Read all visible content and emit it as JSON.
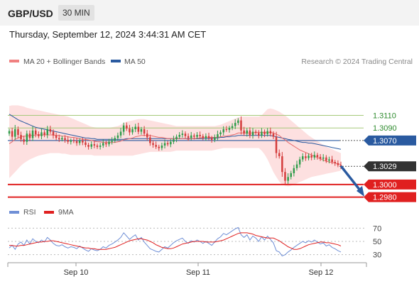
{
  "header": {
    "symbol": "GBP/USD",
    "timeframe": "30 MIN"
  },
  "timestamp": "Thursday, September 12, 2024 3:44:31 AM CET",
  "legend": {
    "items": [
      {
        "label": "MA 20 + Bollinger Bands",
        "color": "#f08080"
      },
      {
        "label": "MA 50",
        "color": "#2a5aa0"
      }
    ],
    "copyright": "Research © 2024 Trading Central"
  },
  "rsi_legend": {
    "items": [
      {
        "label": "RSI",
        "color": "#6f8fd6"
      },
      {
        "label": "9MA",
        "color": "#e02020"
      }
    ]
  },
  "colors": {
    "up_candle": "#2e9c4a",
    "down_candle": "#d43c3c",
    "bollinger_fill": "#fde0e0",
    "ma20": "#e86b6b",
    "ma50": "#2a5aa0",
    "resistance_line": "#a6c97a",
    "support_line": "#e02020",
    "current_price_badge": "#333333",
    "arrow": "#2a5aa0",
    "rsi_line": "#6f8fd6",
    "rsi_ma": "#e02020"
  },
  "chart_data": [
    {
      "type": "candlestick",
      "x_tick_labels": [
        "Sep 10",
        "Sep 11",
        "Sep 12"
      ],
      "ylim": [
        1.2975,
        1.3175
      ],
      "levels": [
        {
          "value": 1.311,
          "label": "1.3110",
          "kind": "resistance"
        },
        {
          "value": 1.309,
          "label": "1.3090",
          "kind": "resistance"
        },
        {
          "value": 1.307,
          "label": "1.3070",
          "kind": "ma50"
        },
        {
          "value": 1.3029,
          "label": "1.3029",
          "kind": "current"
        },
        {
          "value": 1.3,
          "label": "1.3000",
          "kind": "support"
        },
        {
          "value": 1.298,
          "label": "1.2980",
          "kind": "support"
        }
      ],
      "forecast_arrow": {
        "from": 1.3028,
        "to": 1.2983
      },
      "closes": [
        1.3085,
        1.3076,
        1.3088,
        1.3079,
        1.3072,
        1.3068,
        1.3081,
        1.3074,
        1.3086,
        1.308,
        1.3077,
        1.3083,
        1.3079,
        1.3088,
        1.3084,
        1.3078,
        1.3074,
        1.3072,
        1.3074,
        1.3071,
        1.3068,
        1.307,
        1.3069,
        1.3066,
        1.307,
        1.3067,
        1.3063,
        1.306,
        1.3064,
        1.3062,
        1.306,
        1.3062,
        1.3066,
        1.3064,
        1.3068,
        1.307,
        1.3074,
        1.3078,
        1.3084,
        1.3094,
        1.3089,
        1.3083,
        1.3088,
        1.3092,
        1.3084,
        1.3088,
        1.3081,
        1.3075,
        1.3066,
        1.3063,
        1.306,
        1.3058,
        1.3062,
        1.3066,
        1.3064,
        1.3068,
        1.3072,
        1.3076,
        1.3079,
        1.3081,
        1.3077,
        1.3074,
        1.3078,
        1.3076,
        1.3079,
        1.3077,
        1.3074,
        1.3077,
        1.3074,
        1.3071,
        1.3075,
        1.308,
        1.3083,
        1.3088,
        1.3087,
        1.309,
        1.3093,
        1.3098,
        1.3102,
        1.3086,
        1.3081,
        1.3086,
        1.3078,
        1.3084,
        1.3082,
        1.3078,
        1.3084,
        1.308,
        1.3085,
        1.3081,
        1.3076,
        1.305,
        1.3045,
        1.302,
        1.3006,
        1.3012,
        1.3018,
        1.3026,
        1.3032,
        1.304,
        1.3045,
        1.3042,
        1.3046,
        1.3043,
        1.3047,
        1.3044,
        1.3041,
        1.3043,
        1.3038,
        1.304,
        1.3036,
        1.3034,
        1.3031,
        1.3029
      ],
      "ma20": [
        1.3065,
        1.3068,
        1.3072,
        1.3074,
        1.3076,
        1.3077,
        1.3077,
        1.3078,
        1.3078,
        1.3079,
        1.3079,
        1.3079,
        1.3079,
        1.3079,
        1.3079,
        1.3079,
        1.3078,
        1.3078,
        1.3077,
        1.3077,
        1.3076,
        1.3075,
        1.3075,
        1.3074,
        1.3073,
        1.3072,
        1.3072,
        1.3071,
        1.307,
        1.3069,
        1.3068,
        1.3068,
        1.3067,
        1.3067,
        1.3067,
        1.3067,
        1.3067,
        1.3068,
        1.3069,
        1.3071,
        1.3072,
        1.3073,
        1.3074,
        1.3076,
        1.3077,
        1.3078,
        1.3078,
        1.3078,
        1.3078,
        1.3077,
        1.3076,
        1.3075,
        1.3075,
        1.3074,
        1.3073,
        1.3073,
        1.3073,
        1.3073,
        1.3073,
        1.3073,
        1.3073,
        1.3072,
        1.3073,
        1.3073,
        1.3074,
        1.3074,
        1.3075,
        1.3075,
        1.3075,
        1.3075,
        1.3075,
        1.3075,
        1.3076,
        1.3077,
        1.3077,
        1.3078,
        1.3079,
        1.308,
        1.3082,
        1.3082,
        1.3082,
        1.3082,
        1.3082,
        1.3082,
        1.3083,
        1.3083,
        1.3083,
        1.3083,
        1.3083,
        1.3083,
        1.3082,
        1.308,
        1.3078,
        1.3074,
        1.3071,
        1.3067,
        1.3064,
        1.3061,
        1.3058,
        1.3055,
        1.3053,
        1.3051,
        1.3049,
        1.3047,
        1.3045,
        1.3043,
        1.3041,
        1.3039,
        1.3037,
        1.3036,
        1.3035,
        1.3034,
        1.3033,
        1.3032
      ],
      "bb_upper": [
        1.3125,
        1.3126,
        1.3126,
        1.3126,
        1.3125,
        1.3124,
        1.3122,
        1.3121,
        1.312,
        1.3119,
        1.3118,
        1.3117,
        1.3116,
        1.3115,
        1.3114,
        1.3113,
        1.3112,
        1.3111,
        1.311,
        1.3109,
        1.3108,
        1.3106,
        1.3104,
        1.3102,
        1.31,
        1.3098,
        1.3096,
        1.3094,
        1.3092,
        1.3091,
        1.309,
        1.309,
        1.309,
        1.309,
        1.309,
        1.3091,
        1.3092,
        1.3093,
        1.3095,
        1.3098,
        1.31,
        1.3101,
        1.3102,
        1.3103,
        1.3104,
        1.3104,
        1.3104,
        1.3103,
        1.3102,
        1.3101,
        1.31,
        1.3099,
        1.3098,
        1.3097,
        1.3096,
        1.3095,
        1.3094,
        1.3093,
        1.3093,
        1.3093,
        1.3093,
        1.3093,
        1.3093,
        1.3093,
        1.3093,
        1.3093,
        1.3093,
        1.3093,
        1.3093,
        1.3093,
        1.3093,
        1.3094,
        1.3095,
        1.3097,
        1.3099,
        1.3101,
        1.3103,
        1.3105,
        1.3107,
        1.3108,
        1.3108,
        1.3108,
        1.3108,
        1.3108,
        1.3108,
        1.3108,
        1.311,
        1.3115,
        1.312,
        1.3121,
        1.312,
        1.3118,
        1.3116,
        1.3113,
        1.311,
        1.3106,
        1.3102,
        1.3098,
        1.3094,
        1.309,
        1.3086,
        1.3082,
        1.3078,
        1.3075,
        1.3072,
        1.3069,
        1.3066,
        1.3063,
        1.306,
        1.3058,
        1.3056,
        1.3054,
        1.3052,
        1.305
      ],
      "bb_lower": [
        1.301,
        1.3015,
        1.302,
        1.3025,
        1.303,
        1.3034,
        1.3037,
        1.304,
        1.3042,
        1.3044,
        1.3046,
        1.3047,
        1.3048,
        1.3049,
        1.305,
        1.305,
        1.305,
        1.305,
        1.3049,
        1.3049,
        1.3048,
        1.3047,
        1.3047,
        1.3047,
        1.3047,
        1.3047,
        1.3047,
        1.3047,
        1.3047,
        1.3046,
        1.3046,
        1.3046,
        1.3046,
        1.3046,
        1.3046,
        1.3046,
        1.3046,
        1.3046,
        1.3046,
        1.3046,
        1.3046,
        1.3046,
        1.3046,
        1.3047,
        1.3048,
        1.3049,
        1.305,
        1.3051,
        1.3052,
        1.3052,
        1.3052,
        1.3052,
        1.3052,
        1.3052,
        1.3052,
        1.3052,
        1.3053,
        1.3054,
        1.3054,
        1.3054,
        1.3054,
        1.3054,
        1.3054,
        1.3054,
        1.3054,
        1.3054,
        1.3054,
        1.3054,
        1.3054,
        1.3054,
        1.3055,
        1.3056,
        1.3057,
        1.3058,
        1.3058,
        1.3058,
        1.3058,
        1.3058,
        1.3058,
        1.3058,
        1.3058,
        1.3058,
        1.3058,
        1.3058,
        1.3058,
        1.3058,
        1.3054,
        1.3048,
        1.304,
        1.303,
        1.302,
        1.3012,
        1.3005,
        1.3,
        1.2998,
        1.2997,
        1.2998,
        1.3,
        1.3002,
        1.3004,
        1.3006,
        1.3008,
        1.301,
        1.3012,
        1.3013,
        1.3014,
        1.3015,
        1.3016,
        1.3017,
        1.3018,
        1.3019,
        1.302,
        1.3021,
        1.3022
      ],
      "ma50": [
        1.3112,
        1.3109,
        1.3106,
        1.3103,
        1.3101,
        1.3099,
        1.3097,
        1.3095,
        1.3093,
        1.3091,
        1.309,
        1.3089,
        1.3088,
        1.3087,
        1.3086,
        1.3085,
        1.3084,
        1.3083,
        1.3082,
        1.3081,
        1.308,
        1.3079,
        1.3078,
        1.3077,
        1.3076,
        1.3075,
        1.3074,
        1.3074,
        1.3073,
        1.3073,
        1.3072,
        1.3072,
        1.3072,
        1.3072,
        1.3072,
        1.3072,
        1.3072,
        1.3072,
        1.3072,
        1.3072,
        1.3073,
        1.3073,
        1.3073,
        1.3073,
        1.3073,
        1.3073,
        1.3073,
        1.3073,
        1.3073,
        1.3073,
        1.3073,
        1.3073,
        1.3073,
        1.3073,
        1.3073,
        1.3073,
        1.3073,
        1.3073,
        1.3073,
        1.3073,
        1.3073,
        1.3073,
        1.3073,
        1.3073,
        1.3073,
        1.3073,
        1.3073,
        1.3073,
        1.3073,
        1.3074,
        1.3074,
        1.3074,
        1.3075,
        1.3075,
        1.3076,
        1.3076,
        1.3077,
        1.3077,
        1.3078,
        1.3078,
        1.3078,
        1.3078,
        1.3078,
        1.3078,
        1.3078,
        1.3078,
        1.3078,
        1.3078,
        1.3078,
        1.3078,
        1.3077,
        1.3076,
        1.3075,
        1.3074,
        1.3073,
        1.3072,
        1.3071,
        1.307,
        1.3069,
        1.3068,
        1.3067,
        1.3067,
        1.3066,
        1.3066,
        1.3065,
        1.3064,
        1.3063,
        1.3062,
        1.3061,
        1.306,
        1.3059,
        1.3058,
        1.3057,
        1.3056
      ]
    },
    {
      "type": "line",
      "series": [
        {
          "name": "RSI"
        },
        {
          "name": "9MA"
        }
      ],
      "ylim": [
        20,
        80
      ],
      "y_tick_labels": [
        "70",
        "50",
        "30"
      ],
      "y_ticks": [
        70,
        50,
        30
      ],
      "rsi": [
        40,
        44,
        38,
        46,
        49,
        44,
        52,
        46,
        54,
        50,
        48,
        52,
        49,
        56,
        52,
        47,
        44,
        43,
        45,
        42,
        40,
        42,
        41,
        39,
        43,
        40,
        37,
        35,
        39,
        37,
        36,
        38,
        42,
        40,
        44,
        46,
        49,
        52,
        56,
        63,
        58,
        53,
        57,
        60,
        52,
        56,
        49,
        44,
        39,
        37,
        35,
        34,
        38,
        42,
        40,
        44,
        48,
        51,
        53,
        55,
        50,
        47,
        51,
        49,
        52,
        50,
        47,
        50,
        47,
        44,
        49,
        54,
        57,
        62,
        60,
        63,
        66,
        69,
        71,
        60,
        56,
        60,
        52,
        58,
        55,
        50,
        57,
        52,
        58,
        53,
        48,
        36,
        34,
        28,
        30,
        34,
        37,
        41,
        44,
        47,
        50,
        48,
        51,
        49,
        52,
        49,
        46,
        48,
        43,
        45,
        41,
        39,
        36,
        34
      ],
      "rsi_ma": [
        44,
        44,
        43,
        43,
        44,
        44,
        45,
        46,
        47,
        48,
        49,
        49,
        50,
        50,
        51,
        51,
        50,
        49,
        48,
        47,
        46,
        45,
        44,
        43,
        42,
        41,
        40,
        40,
        39,
        39,
        38,
        38,
        38,
        38,
        39,
        40,
        41,
        43,
        45,
        47,
        49,
        51,
        52,
        53,
        54,
        54,
        53,
        52,
        50,
        48,
        45,
        43,
        41,
        40,
        39,
        39,
        40,
        42,
        44,
        46,
        47,
        48,
        49,
        50,
        50,
        50,
        50,
        49,
        49,
        49,
        49,
        50,
        51,
        52,
        54,
        56,
        58,
        60,
        62,
        63,
        63,
        63,
        62,
        61,
        59,
        58,
        57,
        56,
        55,
        55,
        55,
        53,
        51,
        48,
        45,
        42,
        40,
        38,
        38,
        39,
        41,
        43,
        45,
        46,
        47,
        48,
        49,
        49,
        48,
        48,
        47,
        46,
        45,
        43
      ]
    }
  ]
}
